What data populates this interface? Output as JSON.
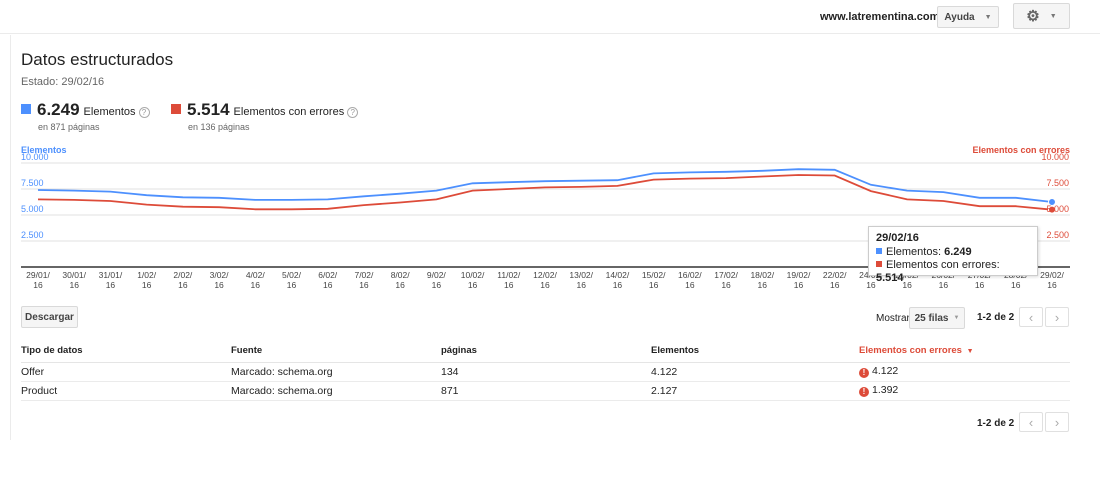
{
  "header": {
    "site": "www.latrementina.com",
    "help_label": "Ayuda",
    "settings_icon": "gear-icon"
  },
  "page": {
    "title": "Datos estructurados",
    "status": "Estado: 29/02/16"
  },
  "summary": {
    "items": {
      "value": "6.249",
      "label": "Elementos",
      "sub": "en 871 páginas",
      "color": "#4d90fe"
    },
    "errors": {
      "value": "5.514",
      "label": "Elementos con errores",
      "sub": "en 136 páginas",
      "color": "#dd4b39"
    }
  },
  "chart_data": {
    "type": "line",
    "left_axis_label": "Elementos",
    "right_axis_label": "Elementos con errores",
    "y_ticks": [
      "10.000",
      "7.500",
      "5.000",
      "2.500"
    ],
    "ylim": [
      0,
      10000
    ],
    "x": [
      "29/01/16",
      "30/01/16",
      "31/01/16",
      "1/02/16",
      "2/02/16",
      "3/02/16",
      "4/02/16",
      "5/02/16",
      "6/02/16",
      "7/02/16",
      "8/02/16",
      "9/02/16",
      "10/02/16",
      "11/02/16",
      "12/02/16",
      "13/02/16",
      "14/02/16",
      "15/02/16",
      "16/02/16",
      "17/02/16",
      "18/02/16",
      "19/02/16",
      "22/02/16",
      "24/02/16",
      "25/02/16",
      "26/02/16",
      "27/02/16",
      "28/02/16",
      "29/02/16"
    ],
    "series": [
      {
        "name": "Elementos",
        "color": "#4d90fe",
        "values": [
          7400,
          7350,
          7250,
          6900,
          6700,
          6650,
          6450,
          6450,
          6500,
          6800,
          7050,
          7350,
          8050,
          8150,
          8250,
          8300,
          8350,
          9000,
          9100,
          9150,
          9250,
          9400,
          9350,
          7900,
          7350,
          7200,
          6650,
          6650,
          6249
        ]
      },
      {
        "name": "Elementos con errores",
        "color": "#dd4b39",
        "values": [
          6500,
          6450,
          6350,
          6000,
          5800,
          5750,
          5550,
          5550,
          5600,
          5950,
          6200,
          6500,
          7350,
          7500,
          7650,
          7700,
          7800,
          8400,
          8500,
          8550,
          8700,
          8850,
          8800,
          7300,
          6500,
          6350,
          5850,
          5850,
          5514
        ]
      }
    ],
    "grid": true
  },
  "tooltip": {
    "date": "29/02/16",
    "items_label": "Elementos:",
    "items_value": "6.249",
    "errors_label": "Elementos con errores:",
    "errors_value": "5.514"
  },
  "toolbar": {
    "download_label": "Descargar",
    "show_label": "Mostrar",
    "rows_select": "25 filas",
    "pager_text": "1-2 de 2"
  },
  "table": {
    "headers": [
      "Tipo de datos",
      "Fuente",
      "páginas",
      "Elementos",
      "Elementos con errores"
    ],
    "rows": [
      {
        "type": "Offer",
        "source": "Marcado: schema.org",
        "pages": "134",
        "items": "4.122",
        "errors": "4.122"
      },
      {
        "type": "Product",
        "source": "Marcado: schema.org",
        "pages": "871",
        "items": "2.127",
        "errors": "1.392"
      }
    ]
  }
}
